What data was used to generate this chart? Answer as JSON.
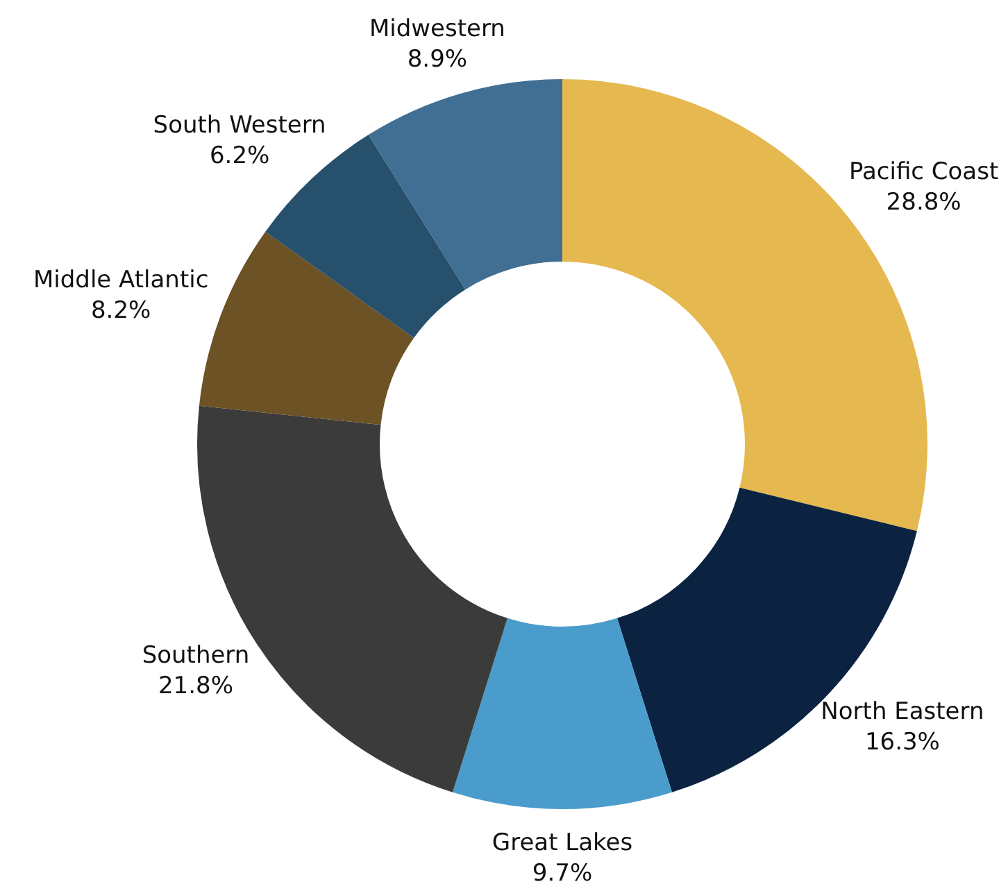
{
  "chart_data": {
    "type": "donut",
    "categories": [
      "Pacific Coast",
      "North Eastern",
      "Great Lakes",
      "Southern",
      "Middle Atlantic",
      "South Western",
      "Midwestern"
    ],
    "values": [
      28.8,
      16.3,
      9.7,
      21.8,
      8.2,
      6.2,
      8.9
    ],
    "value_labels": [
      "28.8%",
      "16.3%",
      "9.7%",
      "21.8%",
      "8.2%",
      "6.2%",
      "8.9%"
    ],
    "colors": [
      "#e5b94f",
      "#0b2341",
      "#4a9ccd",
      "#3b3b3b",
      "#6d5226",
      "#26506b",
      "#416f94"
    ],
    "legend": false
  }
}
